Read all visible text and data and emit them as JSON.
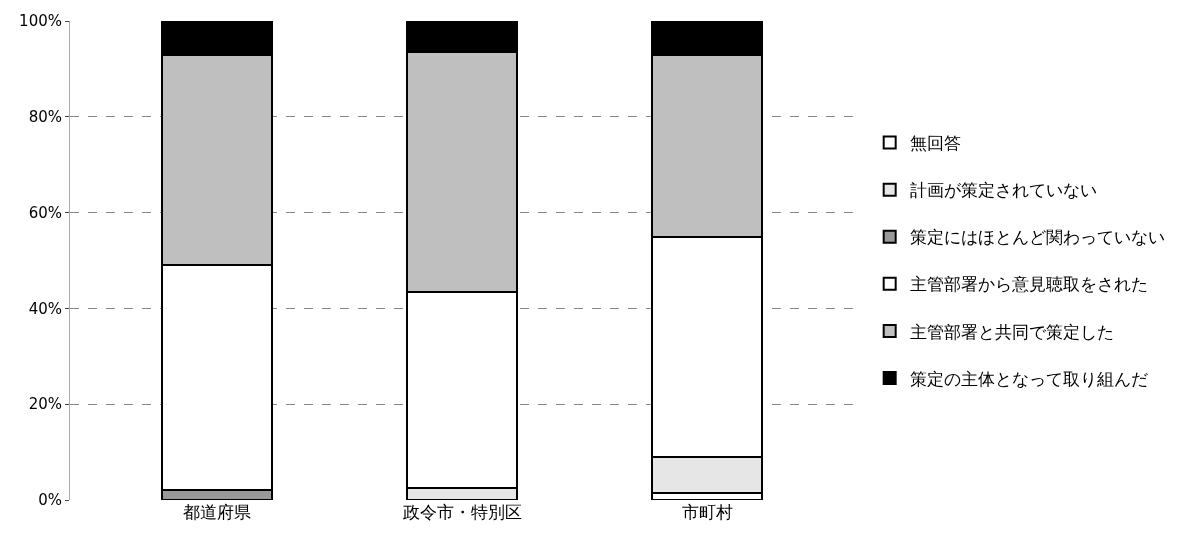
{
  "chart_data": {
    "type": "bar",
    "stacked": true,
    "categories": [
      "都道府県",
      "政令市・特別区",
      "市町村"
    ],
    "series": [
      {
        "name": "無回答",
        "color": "#ffffff",
        "values": [
          0,
          0,
          1.5
        ]
      },
      {
        "name": "計画が策定されていない",
        "color": "#e6e6e6",
        "values": [
          0,
          2.5,
          7.5
        ]
      },
      {
        "name": "策定にはほとんど関わっていない",
        "color": "#999999",
        "values": [
          2,
          0,
          0
        ]
      },
      {
        "name": "主管部署から意見聴取をされた",
        "color": "#ffffff",
        "values": [
          47,
          41,
          46
        ]
      },
      {
        "name": "主管部署と共同で策定した",
        "color": "#bfbfbf",
        "values": [
          44,
          50,
          38
        ]
      },
      {
        "name": "策定の主体となって取り組んだ",
        "color": "#000000",
        "values": [
          7,
          6.5,
          7
        ]
      }
    ],
    "ylim": [
      0,
      100
    ],
    "yticks": [
      {
        "value": 0,
        "label": "0%"
      },
      {
        "value": 20,
        "label": "20%"
      },
      {
        "value": 40,
        "label": "40%"
      },
      {
        "value": 60,
        "label": "60%"
      },
      {
        "value": 80,
        "label": "80%"
      },
      {
        "value": 100,
        "label": "100%"
      }
    ],
    "grid": "y",
    "legend": "right"
  }
}
